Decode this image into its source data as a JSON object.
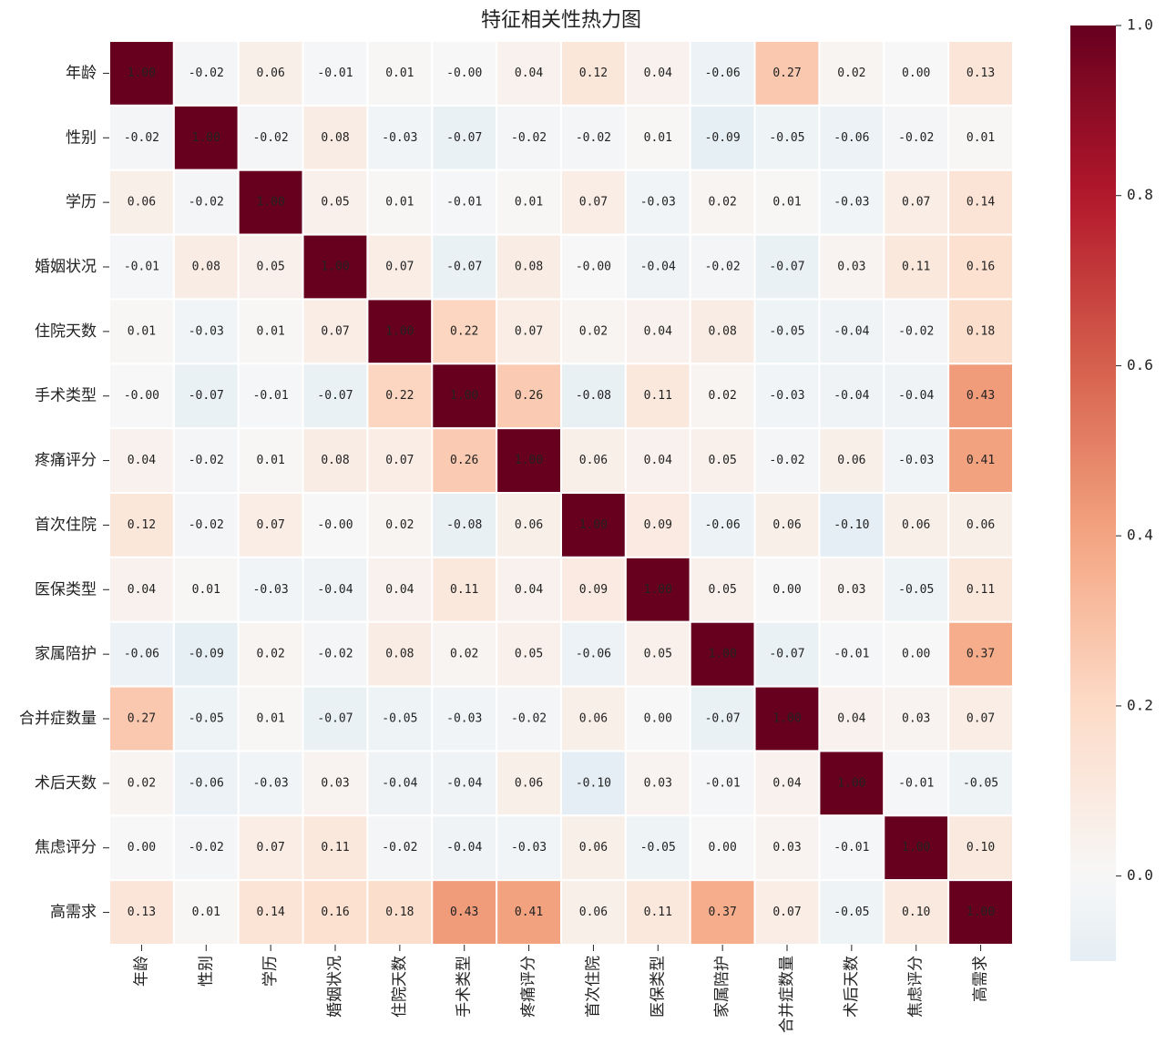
{
  "chart_data": {
    "type": "heatmap",
    "title": "特征相关性热力图",
    "categories": [
      "年龄",
      "性别",
      "学历",
      "婚姻状况",
      "住院天数",
      "手术类型",
      "疼痛评分",
      "首次住院",
      "医保类型",
      "家属陪护",
      "合并症数量",
      "术后天数",
      "焦虑评分",
      "高需求"
    ],
    "values": [
      [
        1,
        -0.02,
        0.06,
        -0.01,
        0.01,
        0,
        0.04,
        0.12,
        0.04,
        -0.06,
        0.27,
        0.02,
        0,
        0.13
      ],
      [
        -0.02,
        1,
        -0.02,
        0.08,
        -0.03,
        -0.07,
        -0.02,
        -0.02,
        0.01,
        -0.09,
        -0.05,
        -0.06,
        -0.02,
        0.01
      ],
      [
        0.06,
        -0.02,
        1,
        0.05,
        0.01,
        -0.01,
        0.01,
        0.07,
        -0.03,
        0.02,
        0.01,
        -0.03,
        0.07,
        0.14
      ],
      [
        -0.01,
        0.08,
        0.05,
        1,
        0.07,
        -0.07,
        0.08,
        0,
        -0.04,
        -0.02,
        -0.07,
        0.03,
        0.11,
        0.16
      ],
      [
        0.01,
        -0.03,
        0.01,
        0.07,
        1,
        0.22,
        0.07,
        0.02,
        0.04,
        0.08,
        -0.05,
        -0.04,
        -0.02,
        0.18
      ],
      [
        0,
        -0.07,
        -0.01,
        -0.07,
        0.22,
        1,
        0.26,
        -0.08,
        0.11,
        0.02,
        -0.03,
        -0.04,
        -0.04,
        0.43
      ],
      [
        0.04,
        -0.02,
        0.01,
        0.08,
        0.07,
        0.26,
        1,
        0.06,
        0.04,
        0.05,
        -0.02,
        0.06,
        -0.03,
        0.41
      ],
      [
        0.12,
        -0.02,
        0.07,
        0,
        0.02,
        -0.08,
        0.06,
        1,
        0.09,
        -0.06,
        0.06,
        -0.1,
        0.06,
        0.06
      ],
      [
        0.04,
        0.01,
        -0.03,
        -0.04,
        0.04,
        0.11,
        0.04,
        0.09,
        1,
        0.05,
        0,
        0.03,
        -0.05,
        0.11
      ],
      [
        -0.06,
        -0.09,
        0.02,
        -0.02,
        0.08,
        0.02,
        0.05,
        -0.06,
        0.05,
        1,
        -0.07,
        -0.01,
        0,
        0.37
      ],
      [
        0.27,
        -0.05,
        0.01,
        -0.07,
        -0.05,
        -0.03,
        -0.02,
        0.06,
        0,
        -0.07,
        1,
        0.04,
        0.03,
        0.07
      ],
      [
        0.02,
        -0.06,
        -0.03,
        0.03,
        -0.04,
        -0.04,
        0.06,
        -0.1,
        0.03,
        -0.01,
        0.04,
        1,
        -0.01,
        -0.05
      ],
      [
        0,
        -0.02,
        0.07,
        0.11,
        -0.02,
        -0.04,
        -0.03,
        0.06,
        -0.05,
        0,
        0.03,
        -0.01,
        1,
        0.1
      ],
      [
        0.13,
        0.01,
        0.14,
        0.16,
        0.18,
        0.43,
        0.41,
        0.06,
        0.11,
        0.37,
        0.07,
        -0.05,
        0.1,
        1
      ]
    ],
    "value_labels": [
      [
        "1.00",
        "-0.02",
        "0.06",
        "-0.01",
        "0.01",
        "-0.00",
        "0.04",
        "0.12",
        "0.04",
        "-0.06",
        "0.27",
        "0.02",
        "0.00",
        "0.13"
      ],
      [
        "-0.02",
        "1.00",
        "-0.02",
        "0.08",
        "-0.03",
        "-0.07",
        "-0.02",
        "-0.02",
        "0.01",
        "-0.09",
        "-0.05",
        "-0.06",
        "-0.02",
        "0.01"
      ],
      [
        "0.06",
        "-0.02",
        "1.00",
        "0.05",
        "0.01",
        "-0.01",
        "0.01",
        "0.07",
        "-0.03",
        "0.02",
        "0.01",
        "-0.03",
        "0.07",
        "0.14"
      ],
      [
        "-0.01",
        "0.08",
        "0.05",
        "1.00",
        "0.07",
        "-0.07",
        "0.08",
        "-0.00",
        "-0.04",
        "-0.02",
        "-0.07",
        "0.03",
        "0.11",
        "0.16"
      ],
      [
        "0.01",
        "-0.03",
        "0.01",
        "0.07",
        "1.00",
        "0.22",
        "0.07",
        "0.02",
        "0.04",
        "0.08",
        "-0.05",
        "-0.04",
        "-0.02",
        "0.18"
      ],
      [
        "-0.00",
        "-0.07",
        "-0.01",
        "-0.07",
        "0.22",
        "1.00",
        "0.26",
        "-0.08",
        "0.11",
        "0.02",
        "-0.03",
        "-0.04",
        "-0.04",
        "0.43"
      ],
      [
        "0.04",
        "-0.02",
        "0.01",
        "0.08",
        "0.07",
        "0.26",
        "1.00",
        "0.06",
        "0.04",
        "0.05",
        "-0.02",
        "0.06",
        "-0.03",
        "0.41"
      ],
      [
        "0.12",
        "-0.02",
        "0.07",
        "-0.00",
        "0.02",
        "-0.08",
        "0.06",
        "1.00",
        "0.09",
        "-0.06",
        "0.06",
        "-0.10",
        "0.06",
        "0.06"
      ],
      [
        "0.04",
        "0.01",
        "-0.03",
        "-0.04",
        "0.04",
        "0.11",
        "0.04",
        "0.09",
        "1.00",
        "0.05",
        "0.00",
        "0.03",
        "-0.05",
        "0.11"
      ],
      [
        "-0.06",
        "-0.09",
        "0.02",
        "-0.02",
        "0.08",
        "0.02",
        "0.05",
        "-0.06",
        "0.05",
        "1.00",
        "-0.07",
        "-0.01",
        "0.00",
        "0.37"
      ],
      [
        "0.27",
        "-0.05",
        "0.01",
        "-0.07",
        "-0.05",
        "-0.03",
        "-0.02",
        "0.06",
        "0.00",
        "-0.07",
        "1.00",
        "0.04",
        "0.03",
        "0.07"
      ],
      [
        "0.02",
        "-0.06",
        "-0.03",
        "0.03",
        "-0.04",
        "-0.04",
        "0.06",
        "-0.10",
        "0.03",
        "-0.01",
        "0.04",
        "1.00",
        "-0.01",
        "-0.05"
      ],
      [
        "0.00",
        "-0.02",
        "0.07",
        "0.11",
        "-0.02",
        "-0.04",
        "-0.03",
        "0.06",
        "-0.05",
        "0.00",
        "0.03",
        "-0.01",
        "1.00",
        "0.10"
      ],
      [
        "0.13",
        "0.01",
        "0.14",
        "0.16",
        "0.18",
        "0.43",
        "0.41",
        "0.06",
        "0.11",
        "0.37",
        "0.07",
        "-0.05",
        "0.10",
        "1.00"
      ]
    ],
    "colormap": [
      "#053061",
      "#2166ac",
      "#4393c3",
      "#92c5de",
      "#d1e5f0",
      "#f7f7f7",
      "#fddbc7",
      "#f4a582",
      "#d6604d",
      "#b2182b",
      "#67001f"
    ],
    "colormap_range": [
      -1,
      1
    ],
    "zlim": [
      -0.1,
      1
    ],
    "zticks": [
      {
        "value": 0,
        "label": "0.0"
      },
      0.2,
      0.4,
      0.6,
      0.8,
      {
        "value": 1,
        "label": "1.0"
      }
    ]
  }
}
